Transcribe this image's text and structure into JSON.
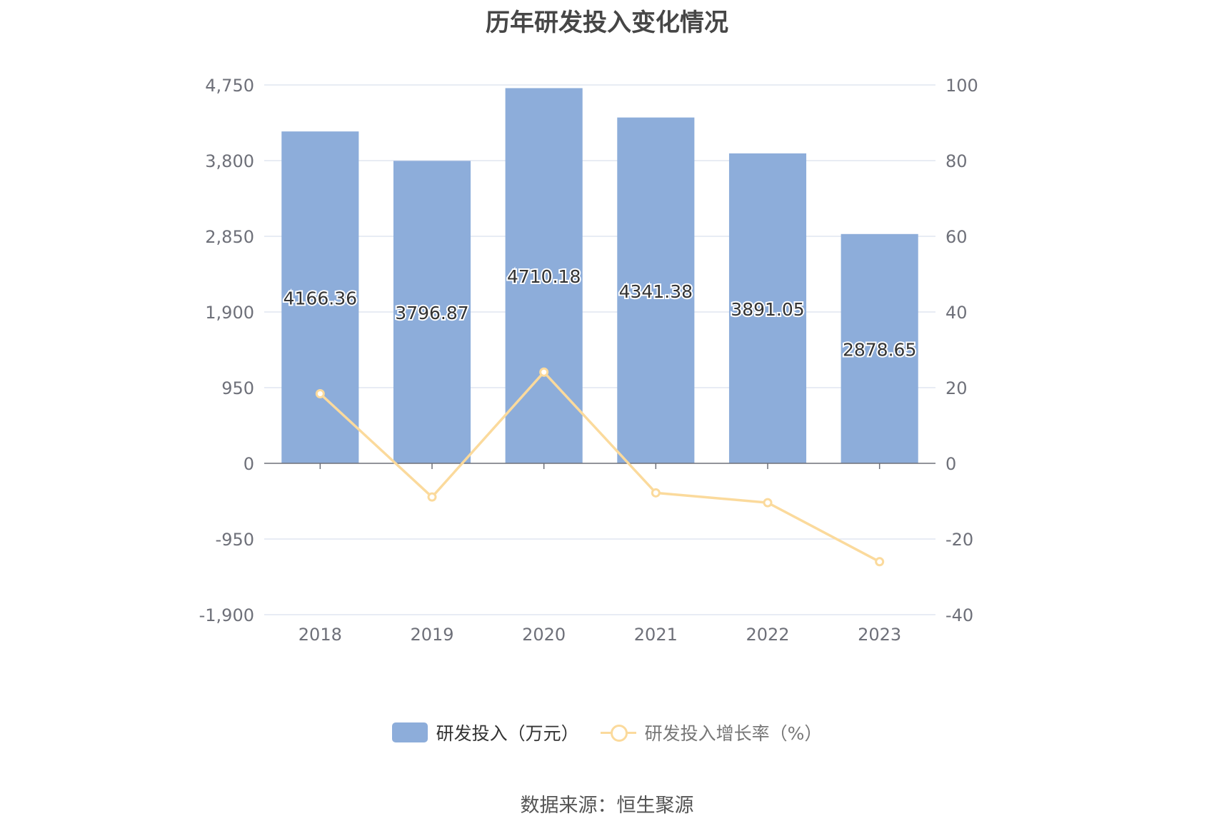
{
  "title": "历年研发投入变化情况",
  "source": "数据来源：恒生聚源",
  "colors": {
    "bar": "#8DADDA",
    "line": "#FBDA9C",
    "grid": "#E0E6F1",
    "axis": "#6E7079",
    "tick_text": "#6E7079"
  },
  "legend": {
    "bar_label": "研发投入（万元）",
    "line_label": "研发投入增长率（%）",
    "position": "bottom-center"
  },
  "chart_data": {
    "type": "bar",
    "title": "历年研发投入变化情况",
    "categories": [
      "2018",
      "2019",
      "2020",
      "2021",
      "2022",
      "2023"
    ],
    "series": [
      {
        "name": "研发投入（万元）",
        "type": "bar",
        "axis": "left",
        "values": [
          4166.36,
          3796.87,
          4710.18,
          4341.38,
          3891.05,
          2878.65
        ],
        "labels": [
          "4166.36",
          "3796.87",
          "4710.18",
          "4341.38",
          "3891.05",
          "2878.65"
        ]
      },
      {
        "name": "研发投入增长率（%）",
        "type": "line",
        "axis": "right",
        "values": [
          18.4,
          -8.9,
          24.1,
          -7.8,
          -10.4,
          -26.0
        ]
      }
    ],
    "y_left": {
      "min": -1900,
      "max": 4750,
      "ticks": [
        4750,
        3800,
        2850,
        1900,
        950,
        0,
        -950,
        -1900
      ],
      "tick_labels": [
        "4,750",
        "3,800",
        "2,850",
        "1,900",
        "950",
        "0",
        "-950",
        "-1,900"
      ]
    },
    "y_right": {
      "min": -40,
      "max": 100,
      "ticks": [
        100,
        80,
        60,
        40,
        20,
        0,
        -20,
        -40
      ],
      "tick_labels": [
        "100",
        "80",
        "60",
        "40",
        "20",
        "0",
        "-20",
        "-40"
      ]
    },
    "grid": true
  }
}
